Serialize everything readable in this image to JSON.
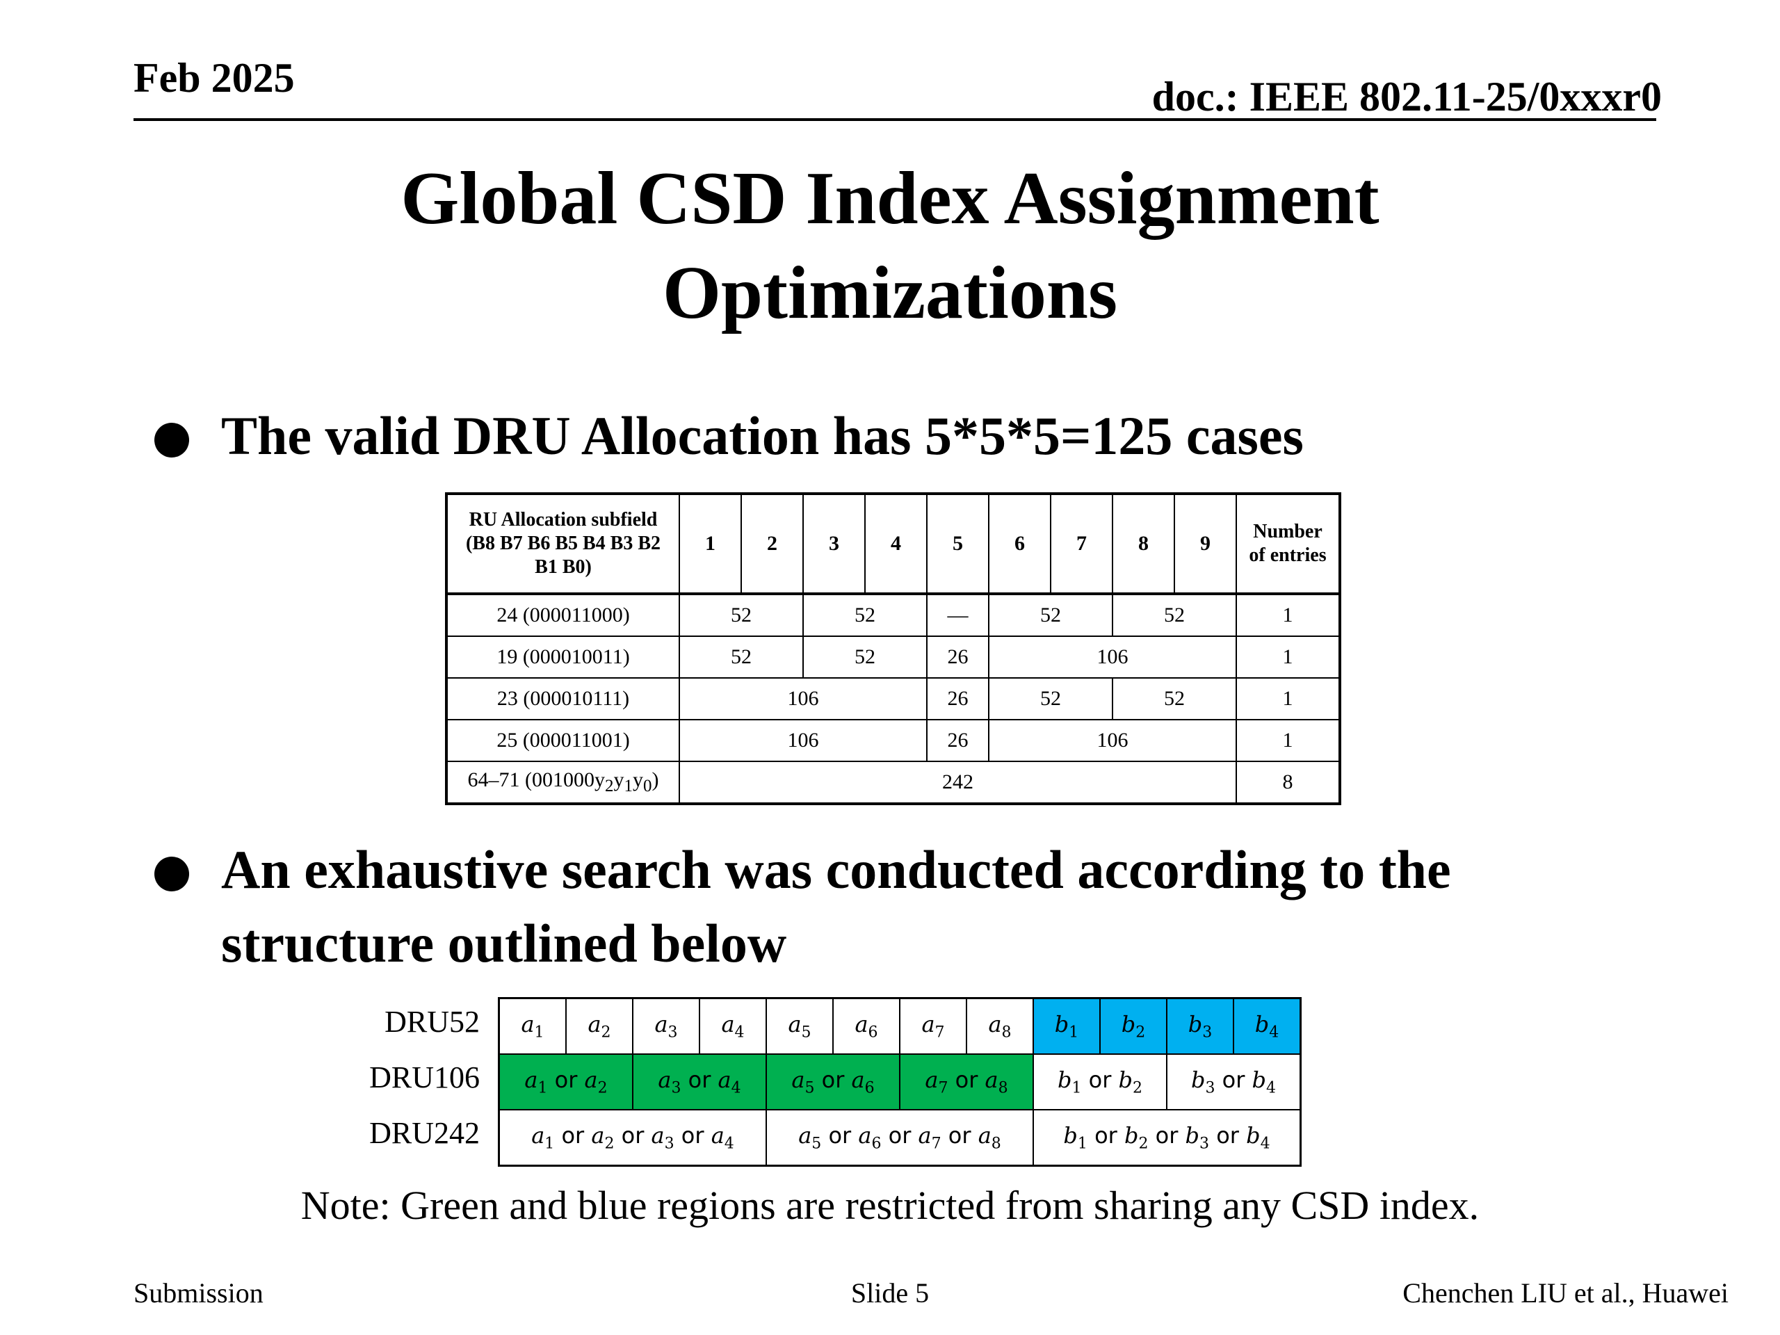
{
  "header": {
    "date": "Feb 2025",
    "doc": "doc.: IEEE 802.11-25/0xxxr0"
  },
  "title": {
    "line1": "Global CSD Index Assignment",
    "line2": "Optimizations"
  },
  "bullets": {
    "b1": "The valid DRU Allocation has 5*5*5=125 cases",
    "b2_line1": "An exhaustive search was conducted according to the",
    "b2_line2": "structure outlined below"
  },
  "ru_table": {
    "header_label": [
      "RU Allocation subfield",
      "(B8 B7 B6 B5 B4 B3 B2",
      "B1 B0)"
    ],
    "columns": [
      "1",
      "2",
      "3",
      "4",
      "5",
      "6",
      "7",
      "8",
      "9"
    ],
    "entries_header": [
      "Number",
      "of entries"
    ],
    "rows": [
      {
        "label": "24 (000011000)",
        "cells": [
          "52",
          "52",
          "—",
          "52",
          "52"
        ],
        "entries": "1"
      },
      {
        "label": "19 (000010011)",
        "cells": [
          "52",
          "52",
          "26",
          "106"
        ],
        "entries": "1"
      },
      {
        "label": "23 (000010111)",
        "cells": [
          "106",
          "26",
          "52",
          "52"
        ],
        "entries": "1"
      },
      {
        "label": "25 (000011001)",
        "cells": [
          "106",
          "26",
          "106"
        ],
        "entries": "1"
      },
      {
        "label_prefix": "64–71 (001000",
        "label_vars": [
          "y",
          "2",
          "y",
          "1",
          "y",
          "0"
        ],
        "label_suffix": ")",
        "cells": [
          "242"
        ],
        "entries": "8"
      }
    ]
  },
  "dru": {
    "labels": [
      "DRU52",
      "DRU106",
      "DRU242"
    ],
    "or_word": "or",
    "colors": {
      "green": "#00b050",
      "blue": "#00b0f0"
    }
  },
  "note": "Note: Green and blue regions are restricted from sharing any CSD index.",
  "footer": {
    "left": "Submission",
    "center": "Slide 5",
    "right": "Chenchen LIU et al., Huawei"
  }
}
